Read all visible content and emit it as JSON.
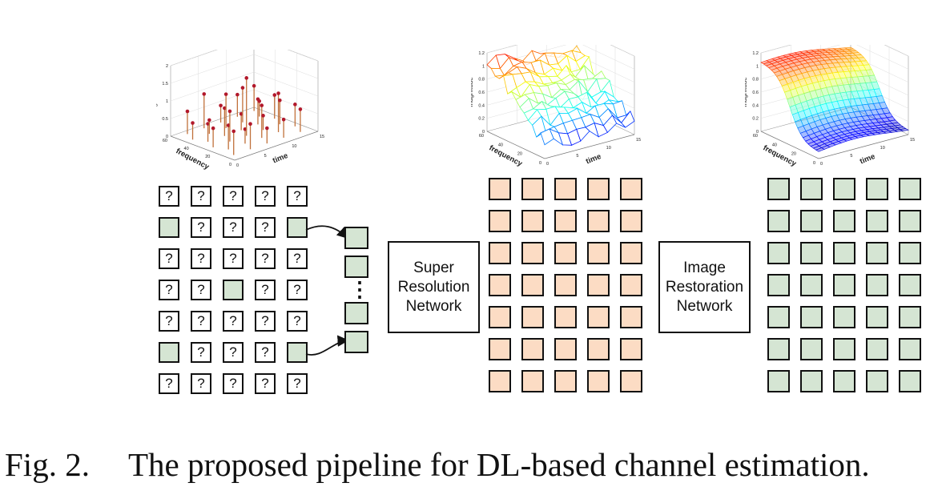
{
  "colors": {
    "pilot_fill": "#d5e5d3",
    "unknown_fill": "#ffffff",
    "sr_fill": "#fcdcc4",
    "restored_fill": "#d5e5d3",
    "stem": "#c0703a",
    "stem_head": "#b2182b"
  },
  "plots": {
    "stem": {
      "zlabel": "magnitude",
      "xlabel": "frequency",
      "ylabel": "time",
      "z_ticks": [
        "2",
        "1.5",
        "1",
        "0.5",
        "0"
      ],
      "x_ticks": [
        "60",
        "40",
        "20",
        "0"
      ],
      "y_ticks": [
        "0",
        "5",
        "10",
        "15"
      ]
    },
    "sr": {
      "zlabel": "magnitude",
      "xlabel": "frequency",
      "ylabel": "time",
      "z_ticks": [
        "1.2",
        "1",
        "0.8",
        "0.6",
        "0.4",
        "0.2",
        "0"
      ],
      "x_ticks": [
        "60",
        "40",
        "20",
        "0"
      ],
      "y_ticks": [
        "0",
        "5",
        "10",
        "15"
      ]
    },
    "restored": {
      "zlabel": "magnitude",
      "xlabel": "frequency",
      "ylabel": "time",
      "z_ticks": [
        "1.2",
        "1",
        "0.8",
        "0.6",
        "0.4",
        "0.2",
        "0"
      ],
      "x_ticks": [
        "60",
        "40",
        "20",
        "0"
      ],
      "y_ticks": [
        "0",
        "5",
        "10",
        "15"
      ]
    }
  },
  "unknown_symbol": "?",
  "input_grid": {
    "rows": 7,
    "cols": 5,
    "pilots": [
      [
        1,
        0
      ],
      [
        1,
        4
      ],
      [
        3,
        2
      ],
      [
        5,
        0
      ],
      [
        5,
        4
      ]
    ]
  },
  "pilot_column": {
    "count": 4,
    "ellipsis": "⋮"
  },
  "sr_grid": {
    "rows": 7,
    "cols": 5
  },
  "restored_grid": {
    "rows": 7,
    "cols": 5
  },
  "sr_network": {
    "line1": "Super",
    "line2": "Resolution",
    "line3": "Network"
  },
  "ir_network": {
    "line1": "Image",
    "line2": "Restoration",
    "line3": "Network"
  },
  "caption": {
    "label": "Fig. 2.",
    "text": "The proposed pipeline for DL-based channel estimation."
  }
}
